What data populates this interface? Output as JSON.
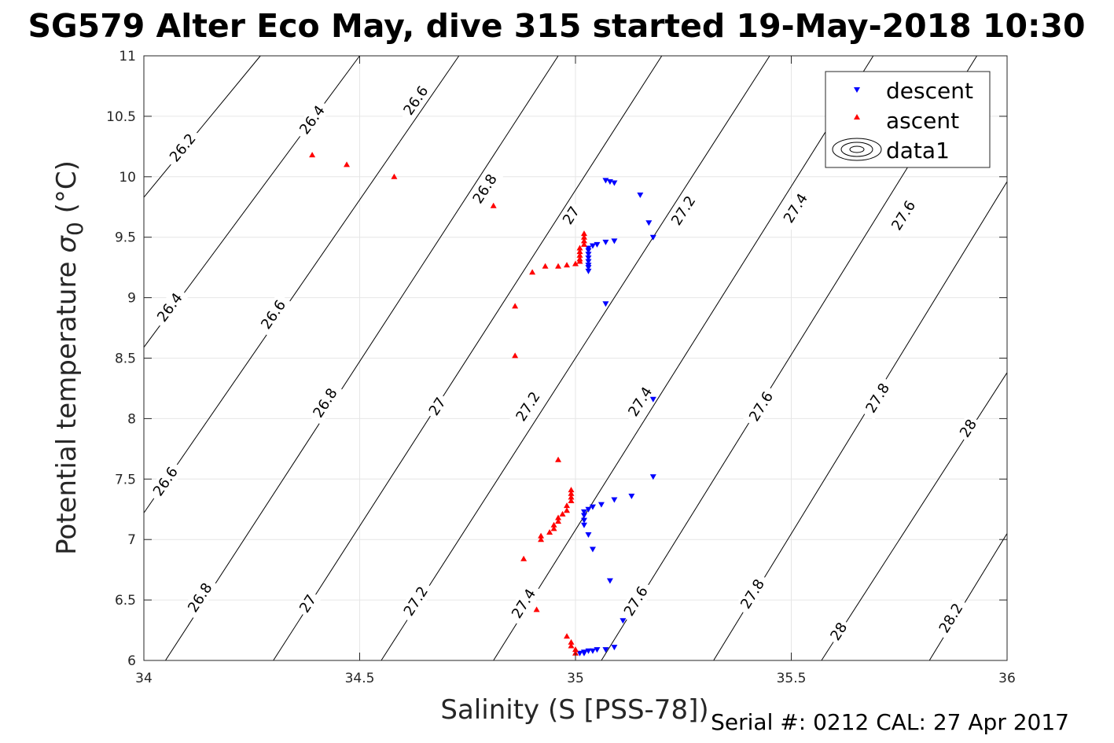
{
  "title": "SG579 Alter Eco May, dive 315 started 19-May-2018 10:30",
  "footer": "Serial #: 0212  CAL: 27 Apr 2017",
  "colors": {
    "descent": "#0000ff",
    "ascent": "#ff0000",
    "contour": "#000000",
    "grid": "#e6e6e6",
    "axis": "#262626"
  },
  "chart_data": {
    "type": "scatter",
    "xlabel": "Salinity (S [PSS-78])",
    "ylabel_main": "Potential temperature ",
    "ylabel_sigma": "σ",
    "ylabel_sub": "0",
    "ylabel_unit": " (°C)",
    "xlim": [
      34,
      36
    ],
    "ylim": [
      6,
      11
    ],
    "grid": true,
    "x_ticks": [
      34,
      34.5,
      35,
      35.5,
      36
    ],
    "x_tick_labels": [
      "34",
      "34.5",
      "35",
      "35.5",
      "36"
    ],
    "y_ticks": [
      6,
      6.5,
      7,
      7.5,
      8,
      8.5,
      9,
      9.5,
      10,
      10.5,
      11
    ],
    "y_tick_labels": [
      "6",
      "6.5",
      "7",
      "7.5",
      "8",
      "8.5",
      "9",
      "9.5",
      "10",
      "10.5",
      "11"
    ],
    "legend_position": "top-right",
    "legend": [
      {
        "name": "descent",
        "marker": "triangle-down",
        "color": "#0000ff"
      },
      {
        "name": "ascent",
        "marker": "triangle-up",
        "color": "#ff0000"
      },
      {
        "name": "data1",
        "marker": "contour"
      }
    ],
    "contours": [
      {
        "level": 26.2,
        "points": [
          [
            34.0,
            9.83
          ],
          [
            34.27,
            11.0
          ]
        ],
        "labels": [
          {
            "text": "26.2",
            "x": 34.09,
            "y": 10.24
          }
        ]
      },
      {
        "level": 26.4,
        "points": [
          [
            34.0,
            8.59
          ],
          [
            34.5,
            11.0
          ]
        ],
        "labels": [
          {
            "text": "26.4",
            "x": 34.06,
            "y": 8.92
          },
          {
            "text": "26.4",
            "x": 34.39,
            "y": 10.47
          }
        ]
      },
      {
        "level": 26.6,
        "points": [
          [
            34.0,
            7.22
          ],
          [
            34.73,
            11.0
          ]
        ],
        "labels": [
          {
            "text": "26.6",
            "x": 34.05,
            "y": 7.48
          },
          {
            "text": "26.6",
            "x": 34.3,
            "y": 8.86
          },
          {
            "text": "26.6",
            "x": 34.63,
            "y": 10.63
          }
        ]
      },
      {
        "level": 26.8,
        "points": [
          [
            34.05,
            6.0
          ],
          [
            34.96,
            11.0
          ]
        ],
        "labels": [
          {
            "text": "26.8",
            "x": 34.13,
            "y": 6.52
          },
          {
            "text": "26.8",
            "x": 34.42,
            "y": 8.13
          },
          {
            "text": "26.8",
            "x": 34.79,
            "y": 9.9
          }
        ]
      },
      {
        "level": 27.0,
        "points": [
          [
            34.3,
            6.0
          ],
          [
            35.2,
            11.0
          ]
        ],
        "labels": [
          {
            "text": "27",
            "x": 34.38,
            "y": 6.47
          },
          {
            "text": "27",
            "x": 34.68,
            "y": 8.1
          },
          {
            "text": "27",
            "x": 34.99,
            "y": 9.68
          }
        ]
      },
      {
        "level": 27.2,
        "points": [
          [
            34.55,
            6.0
          ],
          [
            35.45,
            11.0
          ]
        ],
        "labels": [
          {
            "text": "27.2",
            "x": 34.63,
            "y": 6.49
          },
          {
            "text": "27.2",
            "x": 34.89,
            "y": 8.1
          },
          {
            "text": "27.2",
            "x": 35.25,
            "y": 9.72
          }
        ]
      },
      {
        "level": 27.4,
        "points": [
          [
            34.81,
            6.0
          ],
          [
            35.69,
            11.0
          ]
        ],
        "labels": [
          {
            "text": "27.4",
            "x": 34.88,
            "y": 6.47
          },
          {
            "text": "27.4",
            "x": 35.15,
            "y": 8.14
          },
          {
            "text": "27.4",
            "x": 35.51,
            "y": 9.74
          }
        ]
      },
      {
        "level": 27.6,
        "points": [
          [
            35.06,
            6.0
          ],
          [
            35.93,
            11.0
          ]
        ],
        "labels": [
          {
            "text": "27.6",
            "x": 35.14,
            "y": 6.49
          },
          {
            "text": "27.6",
            "x": 35.43,
            "y": 8.1
          },
          {
            "text": "27.6",
            "x": 35.76,
            "y": 9.68
          }
        ]
      },
      {
        "level": 27.8,
        "points": [
          [
            35.32,
            6.0
          ],
          [
            36.0,
            9.96
          ]
        ],
        "labels": [
          {
            "text": "27.8",
            "x": 35.41,
            "y": 6.55
          },
          {
            "text": "27.8",
            "x": 35.7,
            "y": 8.17
          }
        ]
      },
      {
        "level": 28.0,
        "points": [
          [
            35.57,
            6.0
          ],
          [
            36.0,
            8.38
          ]
        ],
        "labels": [
          {
            "text": "28",
            "x": 35.61,
            "y": 6.24
          },
          {
            "text": "28",
            "x": 35.91,
            "y": 7.92
          }
        ]
      },
      {
        "level": 28.2,
        "points": [
          [
            35.82,
            6.0
          ],
          [
            36.0,
            7.05
          ]
        ],
        "labels": [
          {
            "text": "28.2",
            "x": 35.87,
            "y": 6.35
          }
        ]
      }
    ],
    "series": [
      {
        "name": "descent",
        "marker": "triangle-down",
        "color": "#0000ff",
        "points": [
          [
            35.07,
            9.97
          ],
          [
            35.08,
            9.96
          ],
          [
            35.09,
            9.95
          ],
          [
            35.15,
            9.85
          ],
          [
            35.17,
            9.62
          ],
          [
            35.18,
            9.5
          ],
          [
            35.09,
            9.47
          ],
          [
            35.07,
            9.46
          ],
          [
            35.05,
            9.44
          ],
          [
            35.04,
            9.43
          ],
          [
            35.03,
            9.41
          ],
          [
            35.03,
            9.39
          ],
          [
            35.03,
            9.36
          ],
          [
            35.03,
            9.33
          ],
          [
            35.03,
            9.3
          ],
          [
            35.03,
            9.27
          ],
          [
            35.03,
            9.25
          ],
          [
            35.03,
            9.22
          ],
          [
            35.07,
            8.95
          ],
          [
            35.18,
            8.16
          ],
          [
            35.18,
            7.52
          ],
          [
            35.13,
            7.36
          ],
          [
            35.09,
            7.33
          ],
          [
            35.06,
            7.29
          ],
          [
            35.04,
            7.27
          ],
          [
            35.03,
            7.25
          ],
          [
            35.02,
            7.23
          ],
          [
            35.02,
            7.2
          ],
          [
            35.02,
            7.16
          ],
          [
            35.02,
            7.12
          ],
          [
            35.03,
            7.04
          ],
          [
            35.04,
            6.92
          ],
          [
            35.08,
            6.66
          ],
          [
            35.11,
            6.33
          ],
          [
            35.09,
            6.11
          ],
          [
            35.07,
            6.09
          ],
          [
            35.05,
            6.09
          ],
          [
            35.04,
            6.08
          ],
          [
            35.03,
            6.08
          ],
          [
            35.02,
            6.07
          ],
          [
            35.02,
            6.06
          ],
          [
            35.01,
            6.06
          ]
        ]
      },
      {
        "name": "ascent",
        "marker": "triangle-up",
        "color": "#ff0000",
        "points": [
          [
            34.39,
            10.18
          ],
          [
            34.47,
            10.1
          ],
          [
            34.58,
            10.0
          ],
          [
            34.81,
            9.76
          ],
          [
            34.9,
            9.21
          ],
          [
            34.93,
            9.26
          ],
          [
            34.96,
            9.26
          ],
          [
            34.98,
            9.27
          ],
          [
            35.0,
            9.28
          ],
          [
            35.01,
            9.3
          ],
          [
            35.01,
            9.32
          ],
          [
            35.01,
            9.35
          ],
          [
            35.01,
            9.38
          ],
          [
            35.01,
            9.41
          ],
          [
            35.02,
            9.44
          ],
          [
            35.02,
            9.47
          ],
          [
            35.02,
            9.5
          ],
          [
            35.02,
            9.53
          ],
          [
            34.86,
            8.93
          ],
          [
            34.86,
            8.52
          ],
          [
            34.96,
            7.66
          ],
          [
            34.99,
            7.41
          ],
          [
            34.99,
            7.38
          ],
          [
            34.99,
            7.35
          ],
          [
            34.99,
            7.32
          ],
          [
            34.98,
            7.28
          ],
          [
            34.98,
            7.24
          ],
          [
            34.97,
            7.21
          ],
          [
            34.96,
            7.18
          ],
          [
            34.96,
            7.15
          ],
          [
            34.95,
            7.12
          ],
          [
            34.95,
            7.09
          ],
          [
            34.94,
            7.06
          ],
          [
            34.92,
            7.03
          ],
          [
            34.92,
            7.0
          ],
          [
            34.88,
            6.84
          ],
          [
            34.91,
            6.42
          ],
          [
            34.98,
            6.2
          ],
          [
            34.99,
            6.15
          ],
          [
            34.99,
            6.12
          ],
          [
            35.0,
            6.09
          ],
          [
            35.0,
            6.06
          ]
        ]
      }
    ]
  }
}
